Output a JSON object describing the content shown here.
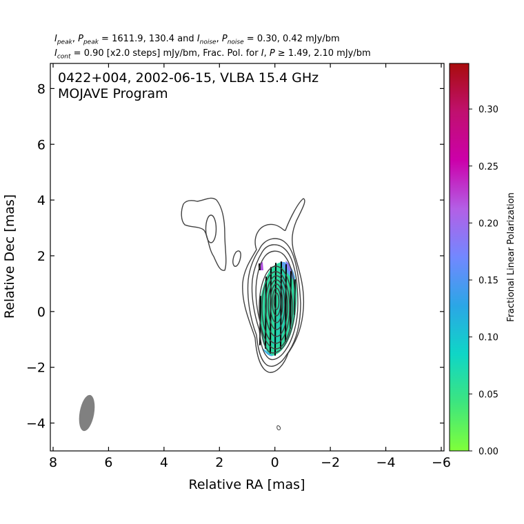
{
  "header": {
    "peak": {
      "I": "1611.9",
      "P": "130.4"
    },
    "noise": {
      "I": "0.30",
      "P": "0.42"
    },
    "unit": "mJy/bm",
    "cont": "0.90",
    "steps": "[x2.0 steps]",
    "fp_I": "1.49",
    "fp_P": "2.10"
  },
  "chart_data": {
    "type": "heatmap",
    "title": "0422+004, 2002-06-15, VLBA 15.4 GHz",
    "subtitle": "MOJAVE Program",
    "xlabel": "Relative RA [mas]",
    "ylabel": "Relative Dec [mas]",
    "xlim": [
      8.1,
      -6.1
    ],
    "ylim": [
      -5.0,
      8.9
    ],
    "xticks": [
      8,
      6,
      4,
      2,
      0,
      -2,
      -4,
      -6
    ],
    "xtick_labels": [
      "8",
      "6",
      "4",
      "2",
      "0",
      "−2",
      "−4",
      "−6"
    ],
    "yticks": [
      -4,
      -2,
      0,
      2,
      4,
      6,
      8
    ],
    "ytick_labels": [
      "−4",
      "−2",
      "0",
      "2",
      "4",
      "6",
      "8"
    ],
    "grid": false,
    "colorbar": {
      "label": "Fractional Linear Polarization",
      "range": [
        0.0,
        0.34
      ],
      "ticks": [
        0.0,
        0.05,
        0.1,
        0.15,
        0.2,
        0.25,
        0.3
      ],
      "tick_labels": [
        "0.00",
        "0.05",
        "0.10",
        "0.15",
        "0.20",
        "0.25",
        "0.30"
      ],
      "colors": [
        "#7fff3a",
        "#3de57f",
        "#0fd6c6",
        "#2ba6e6",
        "#7288ff",
        "#b35fe6",
        "#cc00aa",
        "#c0106f",
        "#a80c0c"
      ]
    },
    "core": {
      "ra": 0.0,
      "dec": 0.0,
      "contour_levels": 11
    },
    "jet_feature": {
      "ra": 2.3,
      "dec": 3.2
    },
    "beam": {
      "ra": 6.8,
      "dec": -3.6,
      "major": 1.3,
      "minor": 0.55,
      "color": "#808080"
    },
    "polarization_region": {
      "ra": 0.0,
      "dec": 0.2,
      "fraction": 0.07
    }
  }
}
